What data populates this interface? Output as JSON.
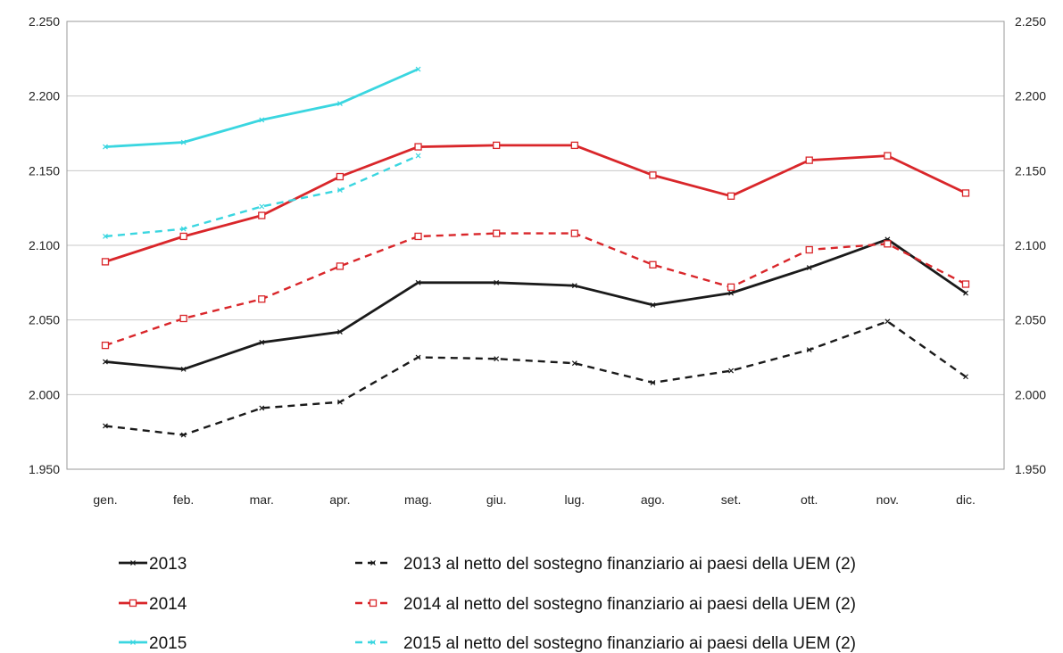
{
  "chart_data": {
    "type": "line",
    "categories": [
      "gen.",
      "feb.",
      "mar.",
      "apr.",
      "mag.",
      "giu.",
      "lug.",
      "ago.",
      "set.",
      "ott.",
      "nov.",
      "dic."
    ],
    "ylim": [
      1950,
      2250
    ],
    "y_ticks": [
      1950,
      2000,
      2050,
      2100,
      2150,
      2200,
      2250
    ],
    "y_tick_labels": [
      "1.950",
      "2.000",
      "2.050",
      "2.100",
      "2.150",
      "2.200",
      "2.250"
    ],
    "grid": true,
    "legend_position": "bottom",
    "series": [
      {
        "name": "2013",
        "color": "#1a1a1a",
        "dashed": false,
        "marker": "x",
        "values": [
          2022,
          2017,
          2035,
          2042,
          2075,
          2075,
          2073,
          2060,
          2068,
          2085,
          2104,
          2068
        ]
      },
      {
        "name": "2014",
        "color": "#d9262a",
        "dashed": false,
        "marker": "square",
        "values": [
          2089,
          2106,
          2120,
          2146,
          2166,
          2167,
          2167,
          2147,
          2133,
          2157,
          2160,
          2135
        ]
      },
      {
        "name": "2015",
        "color": "#3ad6e0",
        "dashed": false,
        "marker": "x",
        "values": [
          2166,
          2169,
          2184,
          2195,
          2218,
          null,
          null,
          null,
          null,
          null,
          null,
          null
        ]
      },
      {
        "name": "2013 al netto del sostegno finanziario ai paesi della UEM (2)",
        "color": "#1a1a1a",
        "dashed": true,
        "marker": "x",
        "values": [
          1979,
          1973,
          1991,
          1995,
          2025,
          2024,
          2021,
          2008,
          2016,
          2030,
          2049,
          2012
        ]
      },
      {
        "name": "2014 al netto del sostegno finanziario ai paesi della UEM (2)",
        "color": "#d9262a",
        "dashed": true,
        "marker": "square",
        "values": [
          2033,
          2051,
          2064,
          2086,
          2106,
          2108,
          2108,
          2087,
          2072,
          2097,
          2101,
          2074
        ]
      },
      {
        "name": "2015 al netto del sostegno finanziario ai paesi della UEM (2)",
        "color": "#3ad6e0",
        "dashed": true,
        "marker": "x",
        "values": [
          2106,
          2111,
          2126,
          2137,
          2160,
          null,
          null,
          null,
          null,
          null,
          null,
          null
        ]
      }
    ]
  }
}
